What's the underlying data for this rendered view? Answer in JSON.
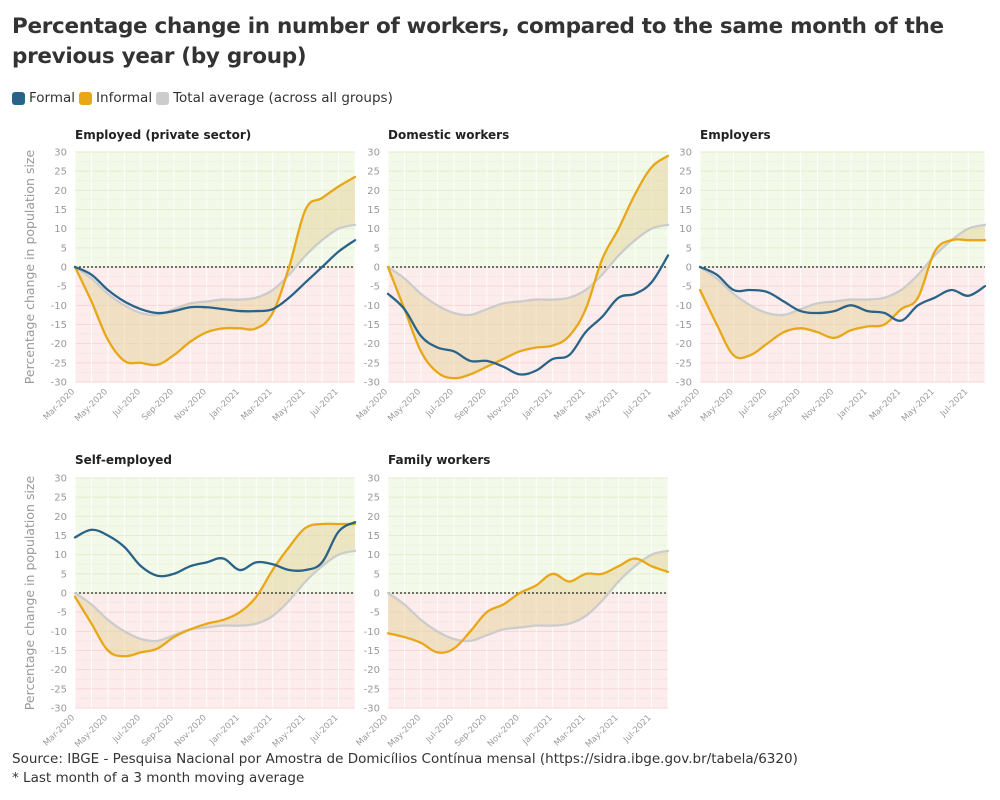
{
  "title": "Percentage change in number of workers, compared to the same month of the previous year (by group)",
  "legend": [
    {
      "label": "Formal",
      "color": "#2a6388"
    },
    {
      "label": "Informal",
      "color": "#e8a716"
    },
    {
      "label": "Total average (across all groups)",
      "color": "#cccccc"
    }
  ],
  "footer": {
    "source": "Source: IBGE - Pesquisa Nacional por Amostra de Domicílios Contínua mensal (https://sidra.ibge.gov.br/tabela/6320)",
    "note": "* Last month of a 3 month moving average"
  },
  "colors": {
    "formal": "#2a6388",
    "informal": "#e8a716",
    "total": "#cccccc",
    "positive_bg": "#f2f9e8",
    "negative_bg": "#fcecec",
    "area_fill": "#e8d5a3",
    "grid": "#e2ecd6"
  },
  "chart_data": [
    {
      "type": "line",
      "title": "Employed (private sector)",
      "ylabel": "Percentage change in population size",
      "ylim": [
        -30,
        30
      ],
      "y_ticks": [
        30,
        25,
        20,
        15,
        10,
        5,
        0,
        -5,
        -10,
        -15,
        -20,
        -25,
        -30
      ],
      "x": [
        "Mar-2020",
        "Apr-2020",
        "May-2020",
        "Jun-2020",
        "Jul-2020",
        "Aug-2020",
        "Sep-2020",
        "Oct-2020",
        "Nov-2020",
        "Dec-2020",
        "Jan-2021",
        "Feb-2021",
        "Mar-2021",
        "Apr-2021",
        "May-2021",
        "Jun-2021",
        "Jul-2021",
        "Aug-2021"
      ],
      "x_tick_labels": [
        "Mar-2020",
        "May-2020",
        "Jul-2020",
        "Sep-2020",
        "Nov-2020",
        "Jan-2021",
        "Mar-2021",
        "May-2021",
        "Jul-2021"
      ],
      "series": [
        {
          "name": "Formal",
          "values": [
            0,
            -2,
            -6,
            -9,
            -11,
            -12,
            -11.5,
            -10.5,
            -10.5,
            -11,
            -11.5,
            -11.5,
            -11,
            -8,
            -4,
            0,
            4,
            7
          ]
        },
        {
          "name": "Informal",
          "values": [
            0,
            -9,
            -19,
            -24.5,
            -25,
            -25.5,
            -23,
            -19.5,
            -17,
            -16,
            -16,
            -16,
            -12,
            0,
            15,
            18,
            21,
            23.5
          ]
        },
        {
          "name": "Total average (across all groups)",
          "values": [
            0,
            -3,
            -7,
            -10,
            -12,
            -12.5,
            -11,
            -9.5,
            -9,
            -8.5,
            -8.5,
            -8,
            -6,
            -2,
            3,
            7,
            10,
            11
          ]
        }
      ]
    },
    {
      "type": "line",
      "title": "Domestic workers",
      "ylim": [
        -30,
        30
      ],
      "x": [
        "Mar-2020",
        "Apr-2020",
        "May-2020",
        "Jun-2020",
        "Jul-2020",
        "Aug-2020",
        "Sep-2020",
        "Oct-2020",
        "Nov-2020",
        "Dec-2020",
        "Jan-2021",
        "Feb-2021",
        "Mar-2021",
        "Apr-2021",
        "May-2021",
        "Jun-2021",
        "Jul-2021",
        "Aug-2021"
      ],
      "x_tick_labels": [
        "Mar-2020",
        "May-2020",
        "Jul-2020",
        "Sep-2020",
        "Nov-2020",
        "Jan-2021",
        "Mar-2021",
        "May-2021",
        "Jul-2021"
      ],
      "series": [
        {
          "name": "Formal",
          "values": [
            -7,
            -11,
            -18,
            -21,
            -22,
            -24.5,
            -24.5,
            -26,
            -28,
            -27,
            -24,
            -23,
            -17,
            -13,
            -8,
            -7,
            -4,
            3
          ]
        },
        {
          "name": "Informal",
          "values": [
            0,
            -11,
            -22,
            -27.5,
            -29,
            -28,
            -26,
            -24,
            -22,
            -21,
            -20.5,
            -18,
            -11,
            2,
            10,
            19,
            26,
            29
          ]
        },
        {
          "name": "Total average (across all groups)",
          "values": [
            0,
            -3,
            -7,
            -10,
            -12,
            -12.5,
            -11,
            -9.5,
            -9,
            -8.5,
            -8.5,
            -8,
            -6,
            -2,
            3,
            7,
            10,
            11
          ]
        }
      ]
    },
    {
      "type": "line",
      "title": "Employers",
      "ylim": [
        -30,
        30
      ],
      "x": [
        "Mar-2020",
        "Apr-2020",
        "May-2020",
        "Jun-2020",
        "Jul-2020",
        "Aug-2020",
        "Sep-2020",
        "Oct-2020",
        "Nov-2020",
        "Dec-2020",
        "Jan-2021",
        "Feb-2021",
        "Mar-2021",
        "Apr-2021",
        "May-2021",
        "Jun-2021",
        "Jul-2021",
        "Aug-2021"
      ],
      "x_tick_labels": [
        "Mar-2020",
        "May-2020",
        "Jul-2020",
        "Sep-2020",
        "Nov-2020",
        "Jan-2021",
        "Mar-2021",
        "May-2021",
        "Jul-2021"
      ],
      "series": [
        {
          "name": "Formal",
          "values": [
            0,
            -2,
            -6,
            -6,
            -6.5,
            -9,
            -11.5,
            -12,
            -11.5,
            -10,
            -11.5,
            -12,
            -14,
            -10,
            -8,
            -6,
            -7.5,
            -5
          ]
        },
        {
          "name": "Informal",
          "values": [
            -6,
            -15,
            -23,
            -23,
            -20,
            -17,
            -16,
            -17,
            -18.5,
            -16.5,
            -15.5,
            -15,
            -11,
            -8,
            4,
            7,
            7,
            7
          ]
        },
        {
          "name": "Total average (across all groups)",
          "values": [
            0,
            -3,
            -7,
            -10,
            -12,
            -12.5,
            -11,
            -9.5,
            -9,
            -8.5,
            -8.5,
            -8,
            -6,
            -2,
            3,
            7,
            10,
            11
          ]
        }
      ]
    },
    {
      "type": "line",
      "title": "Self-employed",
      "ylabel": "Percentage change in population size",
      "ylim": [
        -30,
        30
      ],
      "y_ticks": [
        30,
        25,
        20,
        15,
        10,
        5,
        0,
        -5,
        -10,
        -15,
        -20,
        -25,
        -30
      ],
      "x": [
        "Mar-2020",
        "Apr-2020",
        "May-2020",
        "Jun-2020",
        "Jul-2020",
        "Aug-2020",
        "Sep-2020",
        "Oct-2020",
        "Nov-2020",
        "Dec-2020",
        "Jan-2021",
        "Feb-2021",
        "Mar-2021",
        "Apr-2021",
        "May-2021",
        "Jun-2021",
        "Jul-2021",
        "Aug-2021"
      ],
      "x_tick_labels": [
        "Mar-2020",
        "May-2020",
        "Jul-2020",
        "Sep-2020",
        "Nov-2020",
        "Jan-2021",
        "Mar-2021",
        "May-2021",
        "Jul-2021"
      ],
      "series": [
        {
          "name": "Formal",
          "values": [
            14.5,
            16.5,
            15,
            12,
            7,
            4.5,
            5,
            7,
            8,
            9,
            6,
            8,
            7.5,
            6,
            6,
            8,
            16,
            18.5
          ]
        },
        {
          "name": "Informal",
          "values": [
            -1,
            -8,
            -15,
            -16.5,
            -15.5,
            -14.5,
            -11.5,
            -9.5,
            -8,
            -7,
            -5,
            -1,
            6,
            12,
            17,
            18,
            18,
            18
          ]
        },
        {
          "name": "Total average (across all groups)",
          "values": [
            0,
            -3,
            -7,
            -10,
            -12,
            -12.5,
            -11,
            -9.5,
            -9,
            -8.5,
            -8.5,
            -8,
            -6,
            -2,
            3,
            7,
            10,
            11
          ]
        }
      ]
    },
    {
      "type": "line",
      "title": "Family workers",
      "ylim": [
        -30,
        30
      ],
      "x": [
        "Mar-2020",
        "Apr-2020",
        "May-2020",
        "Jun-2020",
        "Jul-2020",
        "Aug-2020",
        "Sep-2020",
        "Oct-2020",
        "Nov-2020",
        "Dec-2020",
        "Jan-2021",
        "Feb-2021",
        "Mar-2021",
        "Apr-2021",
        "May-2021",
        "Jun-2021",
        "Jul-2021",
        "Aug-2021"
      ],
      "x_tick_labels": [
        "Mar-2020",
        "May-2020",
        "Jul-2020",
        "Sep-2020",
        "Nov-2020",
        "Jan-2021",
        "Mar-2021",
        "May-2021",
        "Jul-2021"
      ],
      "series": [
        {
          "name": "Informal",
          "values": [
            -10.5,
            -11.5,
            -13,
            -15.5,
            -14.5,
            -10,
            -5,
            -3,
            0,
            2,
            5,
            3,
            5,
            5,
            7,
            9,
            7,
            5.5
          ]
        },
        {
          "name": "Total average (across all groups)",
          "values": [
            0,
            -3,
            -7,
            -10,
            -12,
            -12.5,
            -11,
            -9.5,
            -9,
            -8.5,
            -8.5,
            -8,
            -6,
            -2,
            3,
            7,
            10,
            11
          ]
        }
      ]
    }
  ]
}
